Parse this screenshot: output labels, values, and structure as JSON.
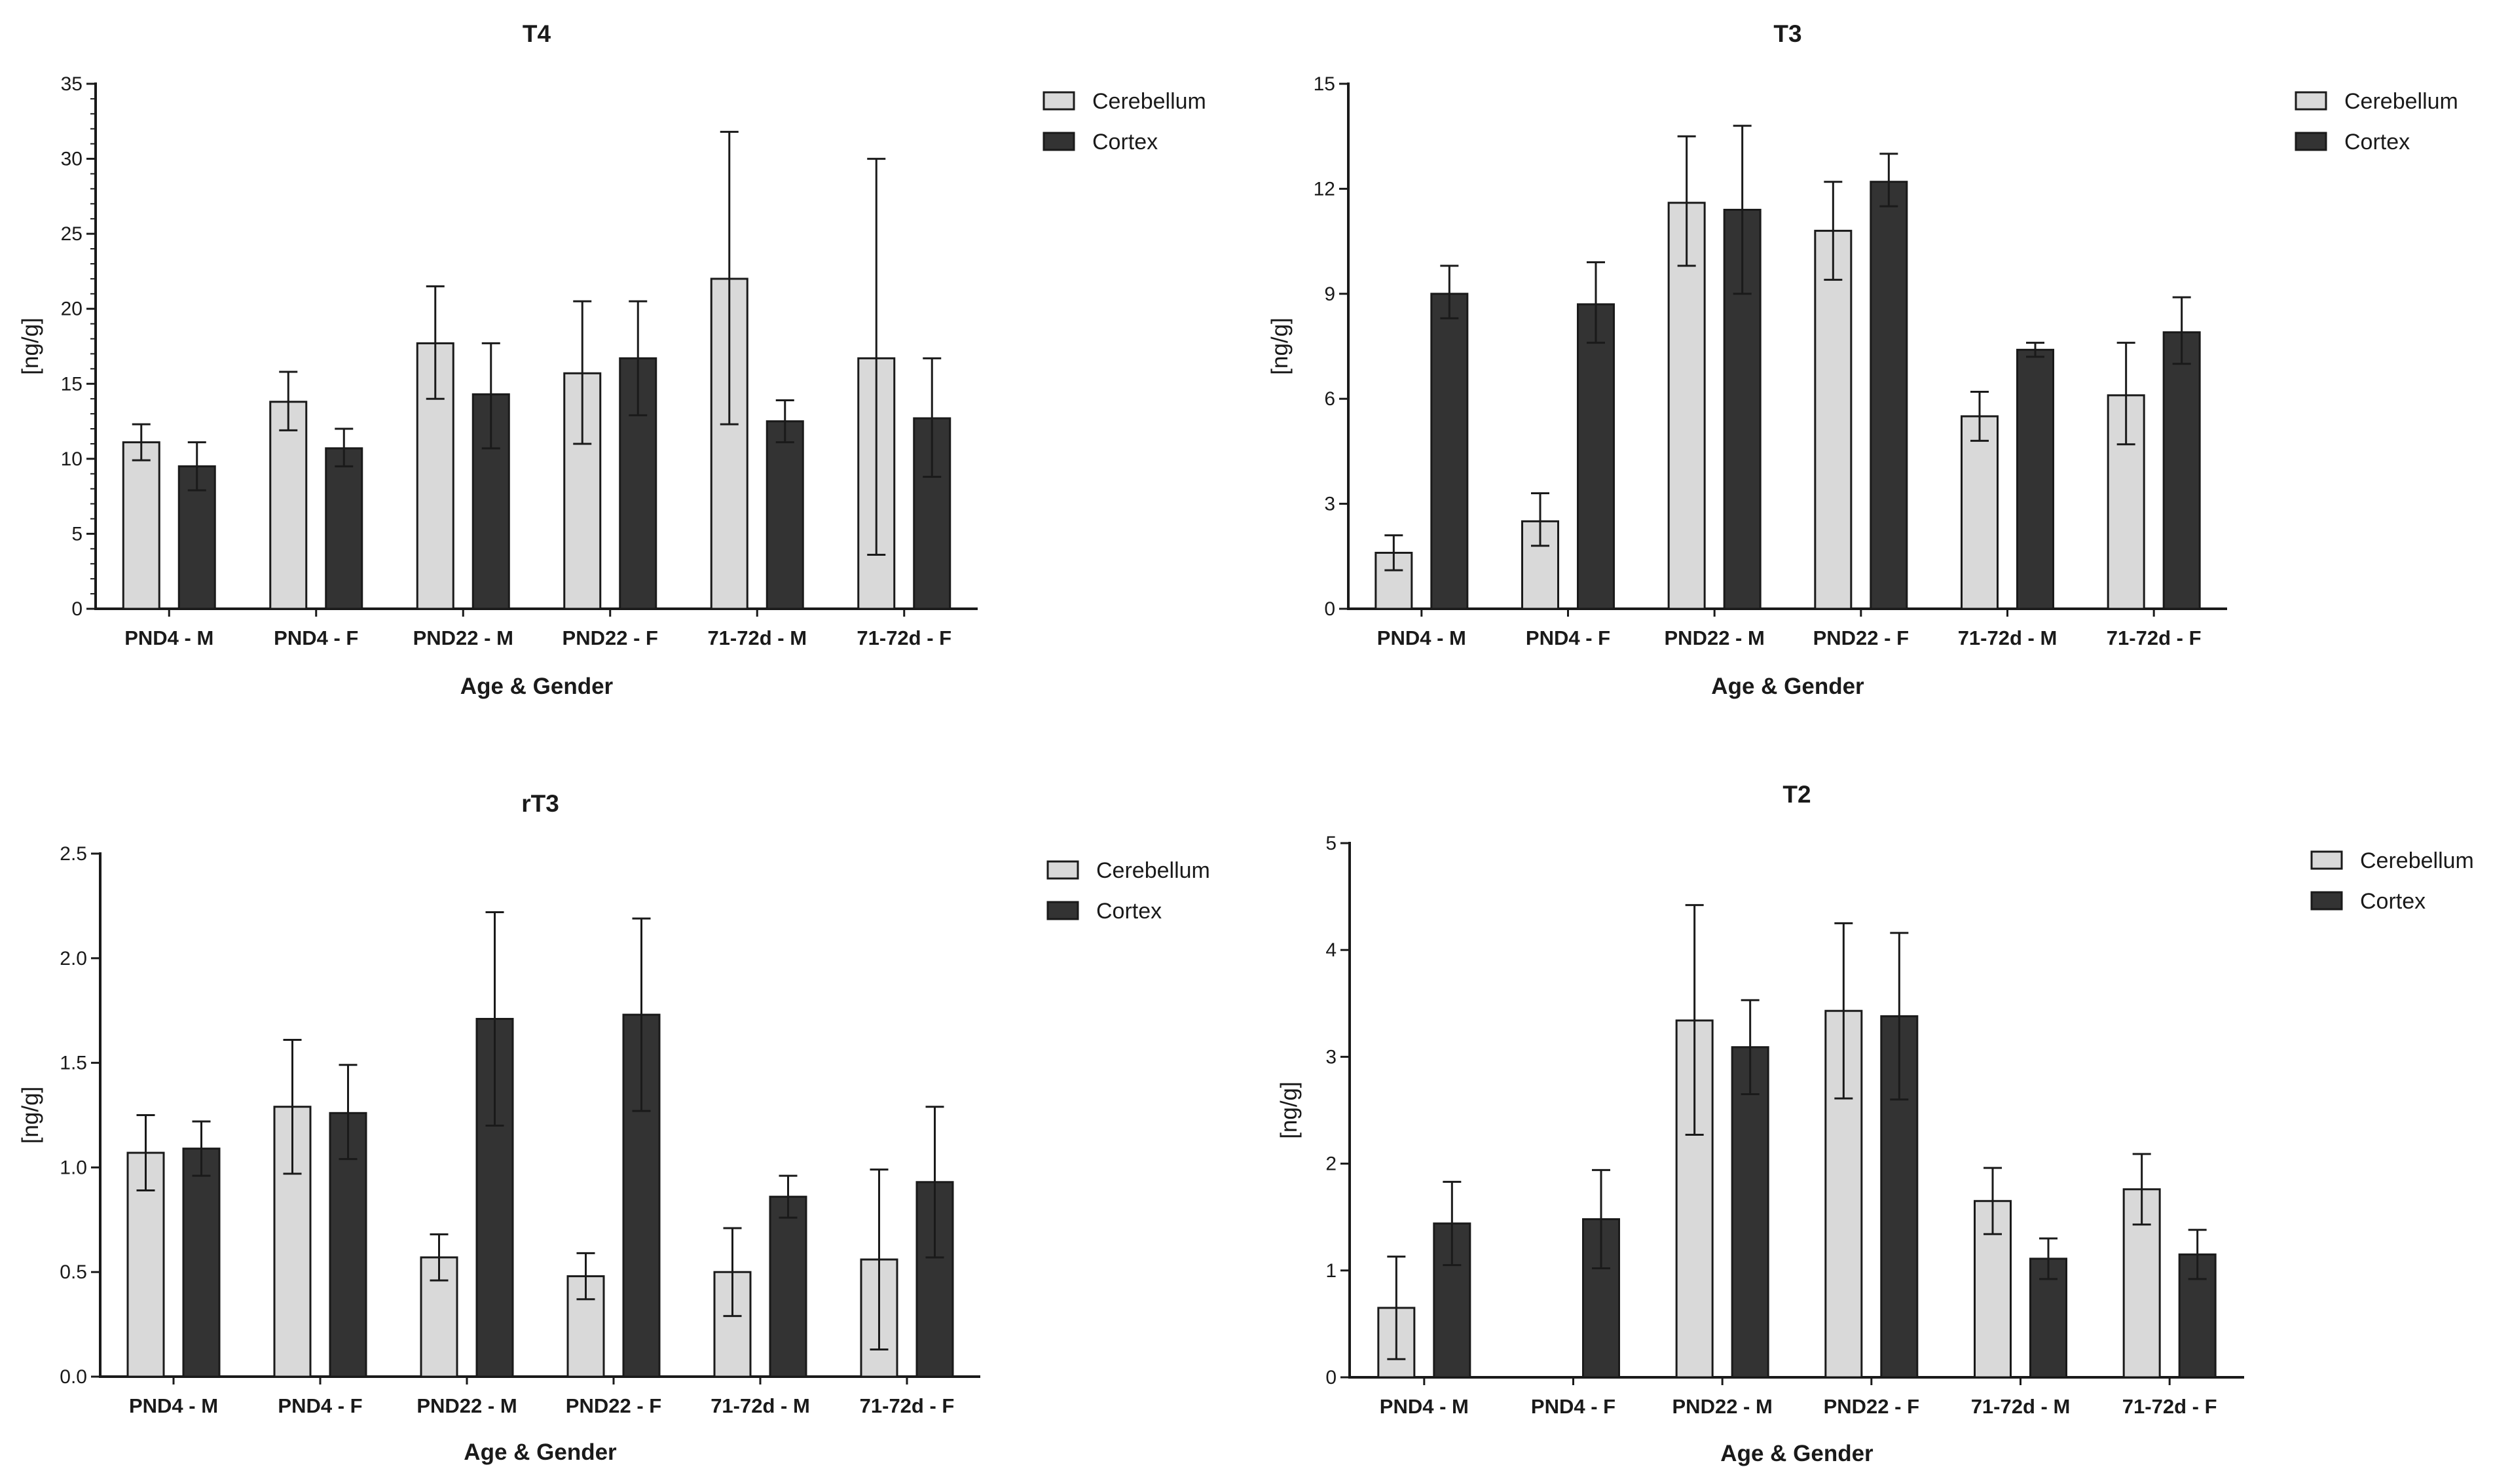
{
  "colors": {
    "cerebellum": "#d9d9d9",
    "cortex": "#333333",
    "stroke": "#1a1a1a"
  },
  "chart_data": [
    {
      "type": "bar",
      "title": "T4",
      "xlabel": "Age & Gender",
      "ylabel": "[ng/g]",
      "ylim": [
        0,
        35
      ],
      "yticks": [
        "0",
        "5",
        "10",
        "15",
        "20",
        "25",
        "30",
        "35"
      ],
      "minor_ticks": true,
      "categories": [
        "PND4 - M",
        "PND4 - F",
        "PND22 - M",
        "PND22 - F",
        "71-72d - M",
        "71-72d - F"
      ],
      "series": [
        {
          "name": "Cerebellum",
          "values": [
            11.1,
            13.8,
            17.7,
            15.7,
            22.0,
            16.7
          ],
          "err_low": [
            9.9,
            11.9,
            14.0,
            11.0,
            12.3,
            3.6
          ],
          "err_high": [
            12.3,
            15.8,
            21.5,
            20.5,
            31.8,
            30.0
          ]
        },
        {
          "name": "Cortex",
          "values": [
            9.5,
            10.7,
            14.3,
            16.7,
            12.5,
            12.7
          ],
          "err_low": [
            7.9,
            9.5,
            10.7,
            12.9,
            11.1,
            8.8
          ],
          "err_high": [
            11.1,
            12.0,
            17.7,
            20.5,
            13.9,
            16.7
          ]
        }
      ],
      "legend": {
        "position": "top-right",
        "entries": [
          "Cerebellum",
          "Cortex"
        ]
      }
    },
    {
      "type": "bar",
      "title": "T3",
      "xlabel": "Age & Gender",
      "ylabel": "[ng/g]",
      "ylim": [
        0,
        15
      ],
      "yticks": [
        "0",
        "3",
        "6",
        "9",
        "12",
        "15"
      ],
      "minor_ticks": false,
      "categories": [
        "PND4 - M",
        "PND4 - F",
        "PND22 - M",
        "PND22 - F",
        "71-72d - M",
        "71-72d - F"
      ],
      "series": [
        {
          "name": "Cerebellum",
          "values": [
            1.6,
            2.5,
            11.6,
            10.8,
            5.5,
            6.1
          ],
          "err_low": [
            1.1,
            1.8,
            9.8,
            9.4,
            4.8,
            4.7
          ],
          "err_high": [
            2.1,
            3.3,
            13.5,
            12.2,
            6.2,
            7.6
          ]
        },
        {
          "name": "Cortex",
          "values": [
            9.0,
            8.7,
            11.4,
            12.2,
            7.4,
            7.9
          ],
          "err_low": [
            8.3,
            7.6,
            9.0,
            11.5,
            7.2,
            7.0
          ],
          "err_high": [
            9.8,
            9.9,
            13.8,
            13.0,
            7.6,
            8.9
          ]
        }
      ],
      "legend": {
        "position": "top-right",
        "entries": [
          "Cerebellum",
          "Cortex"
        ]
      }
    },
    {
      "type": "bar",
      "title": "rT3",
      "xlabel": "Age & Gender",
      "ylabel": "[ng/g]",
      "ylim": [
        0,
        2.5
      ],
      "yticks": [
        "0.0",
        "0.5",
        "1.0",
        "1.5",
        "2.0",
        "2.5"
      ],
      "minor_ticks": false,
      "categories": [
        "PND4 - M",
        "PND4 - F",
        "PND22 - M",
        "PND22 - F",
        "71-72d - M",
        "71-72d - F"
      ],
      "series": [
        {
          "name": "Cerebellum",
          "values": [
            1.07,
            1.29,
            0.57,
            0.48,
            0.5,
            0.56
          ],
          "err_low": [
            0.89,
            0.97,
            0.46,
            0.37,
            0.29,
            0.13
          ],
          "err_high": [
            1.25,
            1.61,
            0.68,
            0.59,
            0.71,
            0.99
          ]
        },
        {
          "name": "Cortex",
          "values": [
            1.09,
            1.26,
            1.71,
            1.73,
            0.86,
            0.93
          ],
          "err_low": [
            0.96,
            1.04,
            1.2,
            1.27,
            0.76,
            0.57
          ],
          "err_high": [
            1.22,
            1.49,
            2.22,
            2.19,
            0.96,
            1.29
          ]
        }
      ],
      "legend": {
        "position": "top-right",
        "entries": [
          "Cerebellum",
          "Cortex"
        ]
      }
    },
    {
      "type": "bar",
      "title": "T2",
      "xlabel": "Age & Gender",
      "ylabel": "[ng/g]",
      "ylim": [
        0,
        5
      ],
      "yticks": [
        "0",
        "1",
        "2",
        "3",
        "4",
        "5"
      ],
      "minor_ticks": false,
      "categories": [
        "PND4 - M",
        "PND4 - F",
        "PND22 - M",
        "PND22 - F",
        "71-72d - M",
        "71-72d - F"
      ],
      "series": [
        {
          "name": "Cerebellum",
          "values": [
            0.65,
            null,
            3.34,
            3.43,
            1.65,
            1.76
          ],
          "err_low": [
            0.17,
            null,
            2.27,
            2.61,
            1.34,
            1.43
          ],
          "err_high": [
            1.13,
            null,
            4.42,
            4.25,
            1.96,
            2.09
          ]
        },
        {
          "name": "Cortex",
          "values": [
            1.44,
            1.48,
            3.09,
            3.38,
            1.11,
            1.15
          ],
          "err_low": [
            1.05,
            1.02,
            2.65,
            2.6,
            0.92,
            0.92
          ],
          "err_high": [
            1.83,
            1.94,
            3.53,
            4.16,
            1.3,
            1.38
          ]
        }
      ],
      "legend": {
        "position": "top-right",
        "entries": [
          "Cerebellum",
          "Cortex"
        ]
      }
    }
  ]
}
